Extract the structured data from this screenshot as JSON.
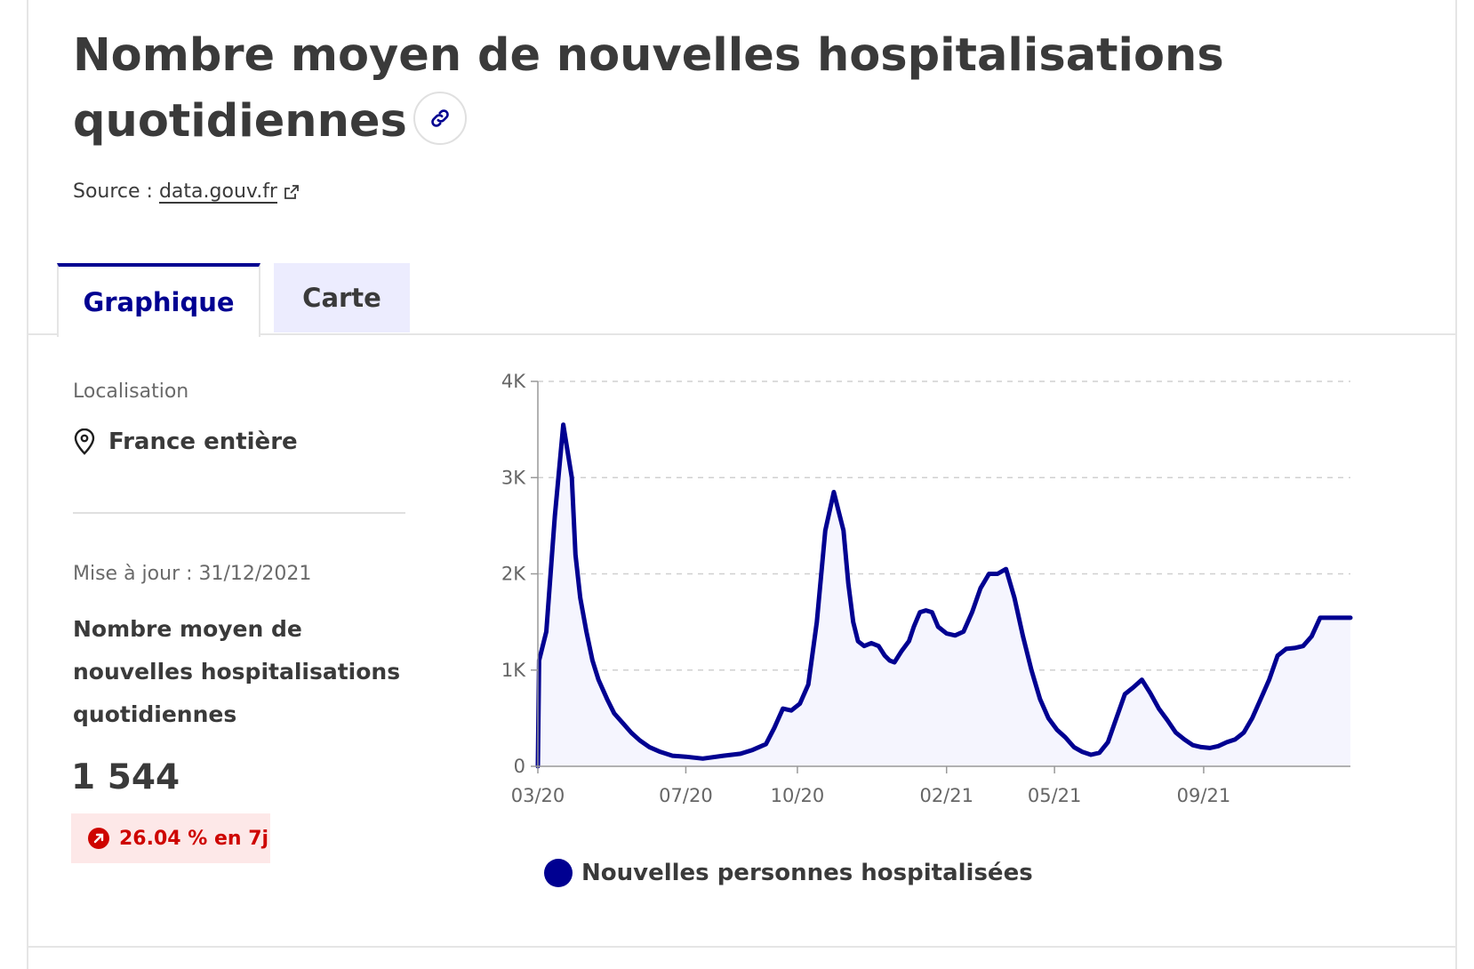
{
  "header": {
    "title_line1": "Nombre moyen de nouvelles hospitalisations",
    "title_line2": "quotidiennes",
    "source_prefix": "Source :",
    "source_link": "data.gouv.fr"
  },
  "tabs": [
    {
      "label": "Graphique",
      "active": true
    },
    {
      "label": "Carte",
      "active": false
    }
  ],
  "sidebar": {
    "location_label": "Localisation",
    "location_value": "France entière",
    "updated": "Mise à jour : 31/12/2021",
    "indicator_title": "Nombre moyen de nouvelles hospitalisations quotidiennes",
    "indicator_value": "1 544",
    "trend": "26.04 % en 7j",
    "trend_color": "#ce0500"
  },
  "colors": {
    "accent": "#000091",
    "area_fill": "#f5f5fe",
    "badge_bg": "#fde8e8"
  },
  "chart_data": {
    "type": "area",
    "title": "",
    "xlabel": "",
    "ylabel": "",
    "x_ticks": [
      "03/20",
      "07/20",
      "10/20",
      "02/21",
      "05/21",
      "09/21"
    ],
    "y_ticks": [
      "0",
      "1K",
      "2K",
      "3K",
      "4K"
    ],
    "ylim": [
      0,
      4000
    ],
    "grid": true,
    "legend_position": "bottom",
    "series": [
      {
        "name": "Nouvelles personnes hospitalisées",
        "x": [
          "2020-03-01",
          "2020-03-02",
          "2020-03-08",
          "2020-03-15",
          "2020-03-22",
          "2020-03-29",
          "2020-04-01",
          "2020-04-05",
          "2020-04-10",
          "2020-04-15",
          "2020-04-20",
          "2020-04-27",
          "2020-05-03",
          "2020-05-10",
          "2020-05-17",
          "2020-05-24",
          "2020-06-01",
          "2020-06-10",
          "2020-06-20",
          "2020-07-01",
          "2020-07-15",
          "2020-08-01",
          "2020-08-15",
          "2020-08-25",
          "2020-09-05",
          "2020-09-12",
          "2020-09-19",
          "2020-09-26",
          "2020-10-03",
          "2020-10-10",
          "2020-10-17",
          "2020-10-24",
          "2020-10-31",
          "2020-11-04",
          "2020-11-08",
          "2020-11-12",
          "2020-11-16",
          "2020-11-20",
          "2020-11-25",
          "2020-12-01",
          "2020-12-07",
          "2020-12-12",
          "2020-12-16",
          "2020-12-20",
          "2020-12-26",
          "2021-01-01",
          "2021-01-05",
          "2021-01-10",
          "2021-01-15",
          "2021-01-20",
          "2021-01-25",
          "2021-02-01",
          "2021-02-08",
          "2021-02-15",
          "2021-02-22",
          "2021-03-01",
          "2021-03-08",
          "2021-03-15",
          "2021-03-22",
          "2021-03-29",
          "2021-04-05",
          "2021-04-12",
          "2021-04-19",
          "2021-04-26",
          "2021-05-03",
          "2021-05-10",
          "2021-05-17",
          "2021-05-24",
          "2021-05-31",
          "2021-06-07",
          "2021-06-14",
          "2021-06-21",
          "2021-06-28",
          "2021-07-05",
          "2021-07-12",
          "2021-07-19",
          "2021-07-26",
          "2021-08-02",
          "2021-08-09",
          "2021-08-16",
          "2021-08-23",
          "2021-08-30",
          "2021-09-06",
          "2021-09-13",
          "2021-09-20",
          "2021-09-27",
          "2021-10-04",
          "2021-10-11",
          "2021-10-18",
          "2021-10-25",
          "2021-11-01",
          "2021-11-08",
          "2021-11-15",
          "2021-11-22",
          "2021-11-29",
          "2021-12-06",
          "2021-12-13",
          "2021-12-20",
          "2021-12-25",
          "2021-12-31"
        ],
        "values": [
          0,
          1100,
          1400,
          2600,
          3550,
          3000,
          2200,
          1750,
          1400,
          1100,
          900,
          700,
          550,
          450,
          350,
          270,
          200,
          150,
          110,
          100,
          80,
          110,
          130,
          170,
          230,
          400,
          600,
          580,
          650,
          850,
          1500,
          2450,
          2850,
          2650,
          2450,
          1900,
          1500,
          1300,
          1250,
          1280,
          1250,
          1150,
          1100,
          1080,
          1200,
          1300,
          1450,
          1600,
          1620,
          1600,
          1450,
          1380,
          1360,
          1400,
          1600,
          1850,
          2000,
          2000,
          2050,
          1750,
          1350,
          1000,
          700,
          500,
          380,
          300,
          200,
          150,
          120,
          140,
          250,
          500,
          750,
          820,
          900,
          760,
          600,
          480,
          350,
          280,
          220,
          200,
          190,
          210,
          250,
          280,
          350,
          500,
          700,
          900,
          1150,
          1220,
          1230,
          1250,
          1350,
          1544,
          1544,
          1544,
          1544,
          1544
        ]
      }
    ]
  }
}
